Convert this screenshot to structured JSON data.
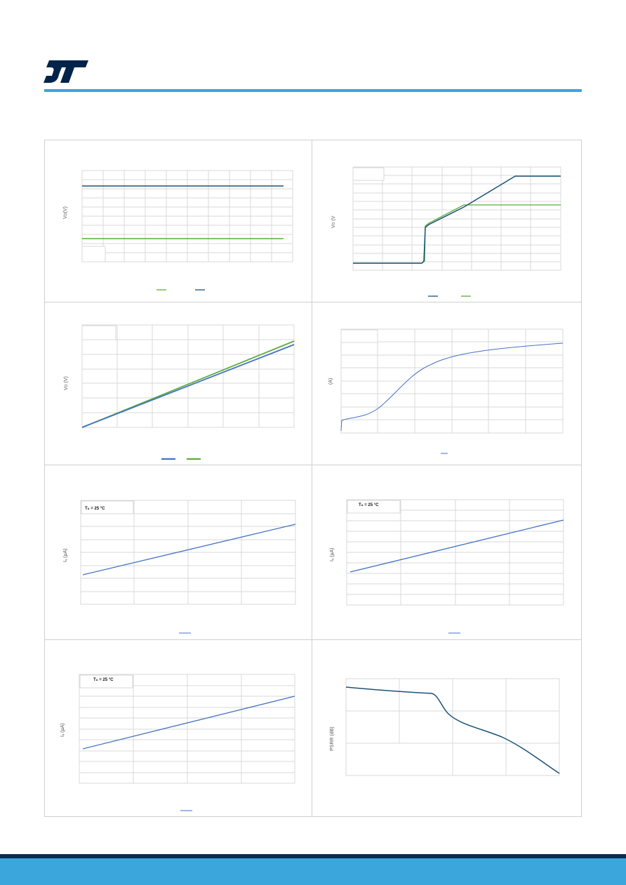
{
  "header": {
    "logo_icon": "st-logo",
    "brand_color": "#03234b",
    "rule_color": "#3aa6dc"
  },
  "colors": {
    "series_green": "#5cac3c",
    "series_navy": "#1a5276",
    "series_blue": "#4472c4",
    "grid": "#d9d9d9"
  },
  "labels": {
    "c1_ylabel": "V",
    "c1_ysub": "O",
    "c1_yunit": "(V)",
    "c2_ylabel": "V",
    "c2_ysub": "O",
    "c2_yunit": "(V",
    "c3_ylabel": "V",
    "c3_ysub": "O",
    "c3_yunit": "(V)",
    "c4_ylabel": "(A)",
    "c5_ylabel": "I",
    "c5_ysub": "q",
    "c5_yunit": "(µA)",
    "c5_annot": "T",
    "c5_annot_sub": "A",
    "c5_annot_rest": "= 25 °C",
    "c6_ylabel": "I",
    "c6_ysub": "q",
    "c6_yunit": "(µA)",
    "c6_annot": "T",
    "c6_annot_sub": "A",
    "c6_annot_rest": "= 25 °C",
    "c7_ylabel": "I",
    "c7_ysub": "q",
    "c7_yunit": "(µA)",
    "c7_annot": "T",
    "c7_annot_sub": "A",
    "c7_annot_rest": "= 25 °C",
    "c8_ylabel": "PSRR (dB)"
  }
}
